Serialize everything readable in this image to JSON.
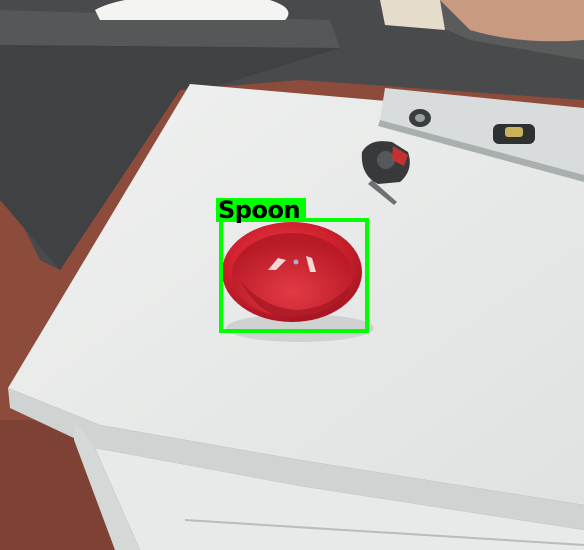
{
  "detection": {
    "label": "Spoon",
    "color": "#00ff00"
  },
  "objects": {
    "bowl": "red-plastic-bowl",
    "tape_measure": "tape-measure",
    "level": "spirit-level",
    "table": "white-table",
    "sofa": "gray-sofa"
  }
}
